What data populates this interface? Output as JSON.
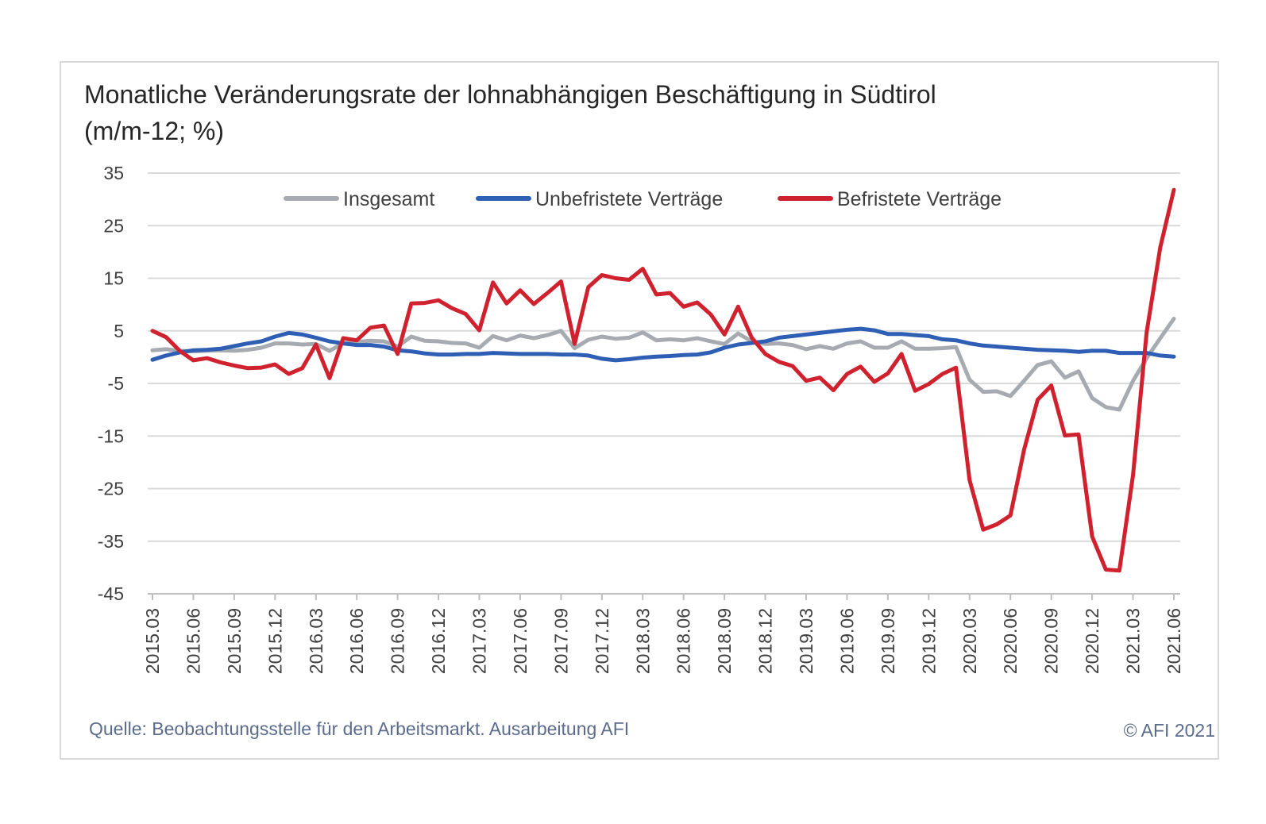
{
  "title": "Monatliche Veränderungsrate der lohnabhängigen Beschäftigung in Südtirol (m/m-12; %)",
  "source": "Quelle: Beobachtungsstelle für den Arbeitsmarkt. Ausarbeitung AFI",
  "copyright": "© AFI 2021",
  "chart_data": {
    "type": "line",
    "title": "Monatliche Veränderungsrate der lohnabhängigen Beschäftigung in Südtirol (m/m-12; %)",
    "xlabel": "",
    "ylabel": "",
    "ylim": [
      -45,
      35
    ],
    "yticks": [
      35,
      25,
      15,
      5,
      -5,
      -15,
      -25,
      -35,
      -45
    ],
    "grid": true,
    "legend_position": "top",
    "x_tick_labels": [
      "2015.03",
      "2015.06",
      "2015.09",
      "2015.12",
      "2016.03",
      "2016.06",
      "2016.09",
      "2016.12",
      "2017.03",
      "2017.06",
      "2017.09",
      "2017.12",
      "2018.03",
      "2018.06",
      "2018.09",
      "2018.12",
      "2019.03",
      "2019.06",
      "2019.09",
      "2019.12",
      "2020.03",
      "2020.06",
      "2020.09",
      "2020.12",
      "2021.03",
      "2021.06"
    ],
    "x": [
      "2015.03",
      "2015.04",
      "2015.05",
      "2015.06",
      "2015.07",
      "2015.08",
      "2015.09",
      "2015.10",
      "2015.11",
      "2015.12",
      "2016.01",
      "2016.02",
      "2016.03",
      "2016.04",
      "2016.05",
      "2016.06",
      "2016.07",
      "2016.08",
      "2016.09",
      "2016.10",
      "2016.11",
      "2016.12",
      "2017.01",
      "2017.02",
      "2017.03",
      "2017.04",
      "2017.05",
      "2017.06",
      "2017.07",
      "2017.08",
      "2017.09",
      "2017.10",
      "2017.11",
      "2017.12",
      "2018.01",
      "2018.02",
      "2018.03",
      "2018.04",
      "2018.05",
      "2018.06",
      "2018.07",
      "2018.08",
      "2018.09",
      "2018.10",
      "2018.11",
      "2018.12",
      "2019.01",
      "2019.02",
      "2019.03",
      "2019.04",
      "2019.05",
      "2019.06",
      "2019.07",
      "2019.08",
      "2019.09",
      "2019.10",
      "2019.11",
      "2019.12",
      "2020.01",
      "2020.02",
      "2020.03",
      "2020.04",
      "2020.05",
      "2020.06",
      "2020.07",
      "2020.08",
      "2020.09",
      "2020.10",
      "2020.11",
      "2020.12",
      "2021.01",
      "2021.02",
      "2021.03",
      "2021.04",
      "2021.05",
      "2021.06"
    ],
    "series": [
      {
        "name": "Insgesamt",
        "color": "#a6aab1",
        "values": [
          1.3,
          1.5,
          1.2,
          1.1,
          1.2,
          1.3,
          1.2,
          1.4,
          1.8,
          2.6,
          2.6,
          2.4,
          2.5,
          1.2,
          2.6,
          2.9,
          3.1,
          3.0,
          2.0,
          3.9,
          3.1,
          3.0,
          2.7,
          2.6,
          1.8,
          4.0,
          3.2,
          4.1,
          3.6,
          4.2,
          5.0,
          1.7,
          3.3,
          3.9,
          3.5,
          3.7,
          4.7,
          3.2,
          3.4,
          3.2,
          3.6,
          3.0,
          2.5,
          4.5,
          3.0,
          2.5,
          2.6,
          2.3,
          1.5,
          2.1,
          1.6,
          2.6,
          3.0,
          1.8,
          1.8,
          3.0,
          1.6,
          1.6,
          1.7,
          1.9,
          -4.3,
          -6.6,
          -6.5,
          -7.4,
          -4.5,
          -1.5,
          -0.8,
          -3.9,
          -2.7,
          -7.8,
          -9.5,
          -10.0,
          -4.5,
          -0.2,
          3.6,
          7.3
        ]
      },
      {
        "name": "Unbefristete Verträge",
        "color": "#2e5fb4",
        "values": [
          -0.5,
          0.3,
          0.9,
          1.3,
          1.4,
          1.6,
          2.1,
          2.6,
          3.0,
          3.9,
          4.6,
          4.3,
          3.7,
          3.0,
          2.6,
          2.3,
          2.3,
          2.0,
          1.3,
          1.1,
          0.7,
          0.5,
          0.5,
          0.6,
          0.6,
          0.8,
          0.7,
          0.6,
          0.6,
          0.6,
          0.5,
          0.5,
          0.3,
          -0.3,
          -0.6,
          -0.4,
          -0.1,
          0.1,
          0.2,
          0.4,
          0.5,
          0.9,
          1.8,
          2.4,
          2.7,
          3.0,
          3.7,
          4.0,
          4.3,
          4.6,
          4.9,
          5.2,
          5.4,
          5.1,
          4.4,
          4.4,
          4.2,
          4.0,
          3.4,
          3.2,
          2.6,
          2.2,
          2.0,
          1.8,
          1.6,
          1.4,
          1.3,
          1.2,
          1.0,
          1.2,
          1.2,
          0.8,
          0.8,
          0.8,
          0.3,
          0.1
        ]
      },
      {
        "name": "Befristete Verträge",
        "color": "#d0212e",
        "values": [
          5.0,
          3.8,
          1.2,
          -0.6,
          -0.2,
          -1.0,
          -1.6,
          -2.1,
          -2.0,
          -1.4,
          -3.2,
          -2.1,
          2.4,
          -4.0,
          3.6,
          3.2,
          5.6,
          6.0,
          0.6,
          10.2,
          10.3,
          10.8,
          9.3,
          8.2,
          5.1,
          14.2,
          10.2,
          12.7,
          10.1,
          12.2,
          14.4,
          2.5,
          13.3,
          15.6,
          15.0,
          14.7,
          16.8,
          11.9,
          12.2,
          9.6,
          10.4,
          8.1,
          4.3,
          9.6,
          3.7,
          0.6,
          -0.9,
          -1.7,
          -4.5,
          -3.9,
          -6.3,
          -3.2,
          -1.8,
          -4.7,
          -3.1,
          0.6,
          -6.4,
          -5.1,
          -3.2,
          -2.0,
          -23.4,
          -32.8,
          -31.8,
          -30.1,
          -17.6,
          -8.1,
          -5.4,
          -14.9,
          -14.7,
          -34.1,
          -40.4,
          -40.6,
          -22.4,
          4.7,
          20.9,
          31.8
        ]
      }
    ]
  }
}
